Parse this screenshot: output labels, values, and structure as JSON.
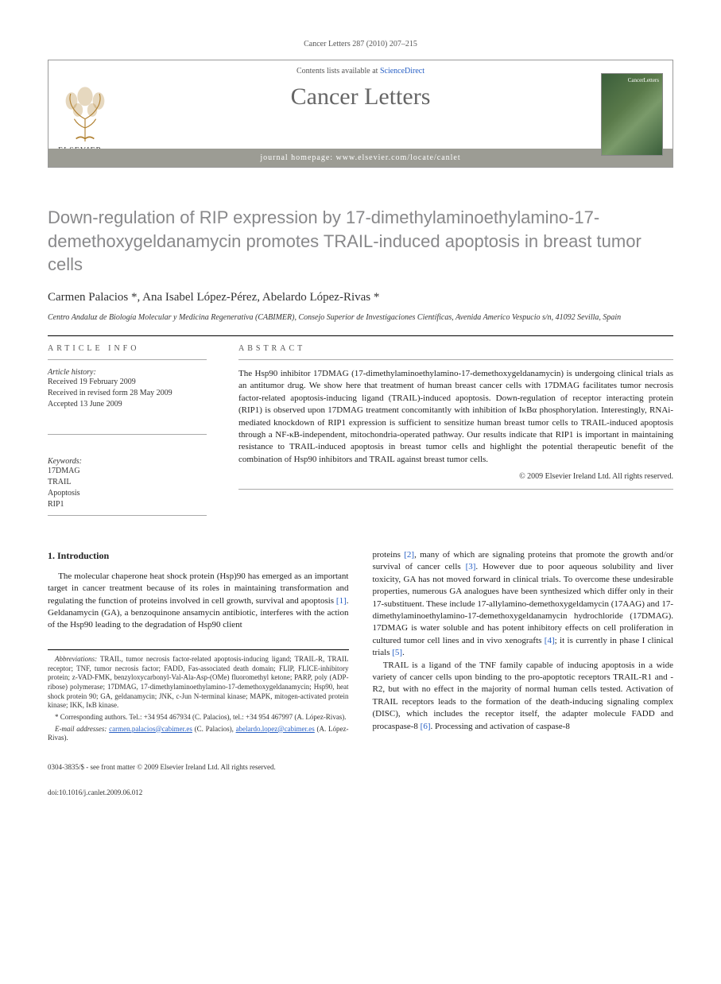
{
  "citation": "Cancer Letters 287 (2010) 207–215",
  "header": {
    "contents_prefix": "Contents lists available at ",
    "contents_link": "ScienceDirect",
    "journal": "Cancer Letters",
    "homepage": "journal homepage: www.elsevier.com/locate/canlet",
    "publisher": "ELSEVIER",
    "cover_label": "CancerLetters"
  },
  "title": "Down-regulation of RIP expression by 17-dimethylaminoethylamino-17-demethoxygeldanamycin promotes TRAIL-induced apoptosis in breast tumor cells",
  "authors": "Carmen Palacios *, Ana Isabel López-Pérez, Abelardo López-Rivas *",
  "affiliation": "Centro Andaluz de Biología Molecular y Medicina Regenerativa (CABIMER), Consejo Superior de Investigaciones Científicas, Avenida Americo Vespucio s/n, 41092 Sevilla, Spain",
  "article_info_head": "ARTICLE INFO",
  "abstract_head": "ABSTRACT",
  "history": {
    "label": "Article history:",
    "items": [
      "Received 19 February 2009",
      "Received in revised form 28 May 2009",
      "Accepted 13 June 2009"
    ]
  },
  "keywords": {
    "label": "Keywords:",
    "items": [
      "17DMAG",
      "TRAIL",
      "Apoptosis",
      "RIP1"
    ]
  },
  "abstract": "The Hsp90 inhibitor 17DMAG (17-dimethylaminoethylamino-17-demethoxygeldanamycin) is undergoing clinical trials as an antitumor drug. We show here that treatment of human breast cancer cells with 17DMAG facilitates tumor necrosis factor-related apoptosis-inducing ligand (TRAIL)-induced apoptosis. Down-regulation of receptor interacting protein (RIP1) is observed upon 17DMAG treatment concomitantly with inhibition of IκBα phosphorylation. Interestingly, RNAi-mediated knockdown of RIP1 expression is sufficient to sensitize human breast tumor cells to TRAIL-induced apoptosis through a NF-κB-independent, mitochondria-operated pathway. Our results indicate that RIP1 is important in maintaining resistance to TRAIL-induced apoptosis in breast tumor cells and highlight the potential therapeutic benefit of the combination of Hsp90 inhibitors and TRAIL against breast tumor cells.",
  "copyright": "© 2009 Elsevier Ireland Ltd. All rights reserved.",
  "intro_head": "1. Introduction",
  "intro_col1": "The molecular chaperone heat shock protein (Hsp)90 has emerged as an important target in cancer treatment because of its roles in maintaining transformation and regulating the function of proteins involved in cell growth, survival and apoptosis [1]. Geldanamycin (GA), a benzoquinone ansamycin antibiotic, interferes with the action of the Hsp90 leading to the degradation of Hsp90 client",
  "intro_col2_p1": "proteins [2], many of which are signaling proteins that promote the growth and/or survival of cancer cells [3]. However due to poor aqueous solubility and liver toxicity, GA has not moved forward in clinical trials. To overcome these undesirable properties, numerous GA analogues have been synthesized which differ only in their 17-substituent. These include 17-allylamino-demethoxygeldamycin (17AAG) and 17-dimethylaminoethylamino-17-demethoxygeldanamycin hydrochloride (17DMAG). 17DMAG is water soluble and has potent inhibitory effects on cell proliferation in cultured tumor cell lines and in vivo xenografts [4]; it is currently in phase I clinical trials [5].",
  "intro_col2_p2": "TRAIL is a ligand of the TNF family capable of inducing apoptosis in a wide variety of cancer cells upon binding to the pro-apoptotic receptors TRAIL-R1 and -R2, but with no effect in the majority of normal human cells tested. Activation of TRAIL receptors leads to the formation of the death-inducing signaling complex (DISC), which includes the receptor itself, the adapter molecule FADD and procaspase-8 [6]. Processing and activation of caspase-8",
  "footnotes": {
    "abbrev_label": "Abbreviations:",
    "abbrev": " TRAIL, tumor necrosis factor-related apoptosis-inducing ligand; TRAIL-R, TRAIL receptor; TNF, tumor necrosis factor; FADD, Fas-associated death domain; FLIP, FLICE-inhibitory protein; z-VAD-FMK, benzyloxycarbonyl-Val-Ala-Asp-(OMe) fluoromethyl ketone; PARP, poly (ADP-ribose) polymerase; 17DMAG, 17-dimethylaminoethylamino-17-demethoxygeldanamycin; Hsp90, heat shock protein 90; GA, geldanamycin; JNK, c-Jun N-terminal kinase; MAPK, mitogen-activated protein kinase; IKK, IκB kinase.",
    "corr": "* Corresponding authors. Tel.: +34 954 467934 (C. Palacios), tel.: +34 954 467997 (A. López-Rivas).",
    "email_label": "E-mail addresses:",
    "email1": "carmen.palacios@cabimer.es",
    "email1_who": " (C. Palacios), ",
    "email2": "abelardo.lopez@cabimer.es",
    "email2_who": " (A. López-Rivas)."
  },
  "footer": {
    "line1": "0304-3835/$ - see front matter © 2009 Elsevier Ireland Ltd. All rights reserved.",
    "doi": "doi:10.1016/j.canlet.2009.06.012"
  },
  "colors": {
    "link": "#2860c5",
    "title_gray": "#88888a",
    "homepage_bar": "#9c9c94"
  }
}
